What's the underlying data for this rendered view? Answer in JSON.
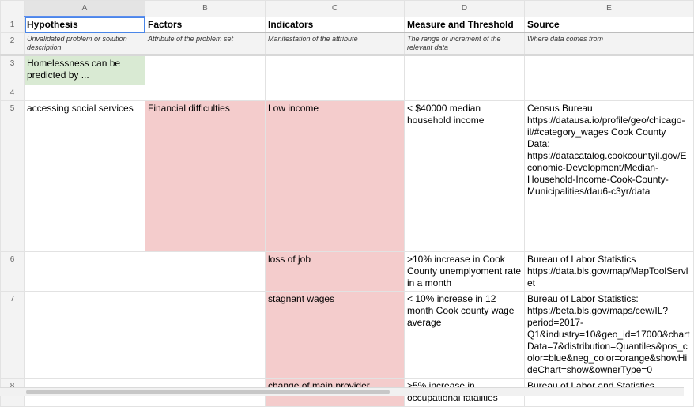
{
  "columns": [
    "A",
    "B",
    "C",
    "D",
    "E"
  ],
  "rows": [
    "1",
    "2",
    "3",
    "4",
    "5",
    "6",
    "7",
    "8"
  ],
  "headers": {
    "a": "Hypothesis",
    "b": "Factors",
    "c": "Indicators",
    "d": "Measure and Threshold",
    "e": "Source"
  },
  "descriptions": {
    "a": "Unvalidated problem or solution description",
    "b": "Attribute of the problem set",
    "c": "Manifestation of the attribute",
    "d": "The range or increment of the relevant data",
    "e": "Where data comes from"
  },
  "row3": {
    "a": "Homelessness can be predicted by ..."
  },
  "row5": {
    "a": "accessing social services",
    "b": "Financial difficulties",
    "c": "Low income",
    "d": "< $40000 median household income",
    "e": "Census Bureau https://datausa.io/profile/geo/chicago-il/#category_wages Cook County Data: https://datacatalog.cookcountyil.gov/Economic-Development/Median-Household-Income-Cook-County-Municipalities/dau6-c3yr/data"
  },
  "row6": {
    "c": "loss of job",
    "d": ">10% increase in Cook County unemplyoment rate in a month",
    "e": "Bureau of Labor Statistics https://data.bls.gov/map/MapToolServlet"
  },
  "row7": {
    "c": "stagnant wages",
    "d": "< 10% increase in 12 month Cook county wage average",
    "e": "Bureau of Labor Statistics: https://beta.bls.gov/maps/cew/IL?period=2017-Q1&industry=10&geo_id=17000&chartData=7&distribution=Quantiles&pos_color=blue&neg_color=orange&showHideChart=show&ownerType=0"
  },
  "row8": {
    "c": "change of main provider",
    "d": ">5% increase in occupational fatalities",
    "e": "Bureau of Labor and Statistics"
  },
  "colors": {
    "green_fill": "#d9ead3",
    "pink_fill": "#f4cccc",
    "selection": "#4a86e8"
  }
}
